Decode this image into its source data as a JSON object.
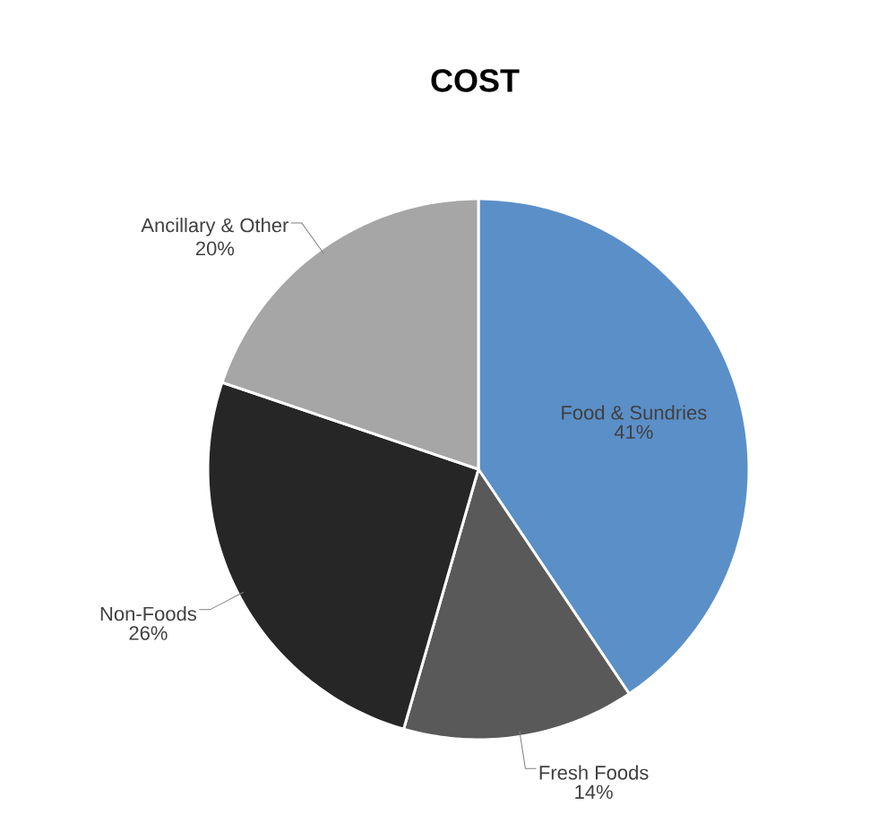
{
  "chart_data": {
    "type": "pie",
    "title": "COST",
    "categories": [
      "Food & Sundries",
      "Fresh Foods",
      "Non-Foods",
      "Ancillary & Other"
    ],
    "values": [
      41,
      14,
      26,
      20
    ],
    "value_labels": [
      "41%",
      "14%",
      "26%",
      "20%"
    ],
    "colors": [
      "#5b8fc8",
      "#595959",
      "#262626",
      "#a6a6a6"
    ]
  }
}
